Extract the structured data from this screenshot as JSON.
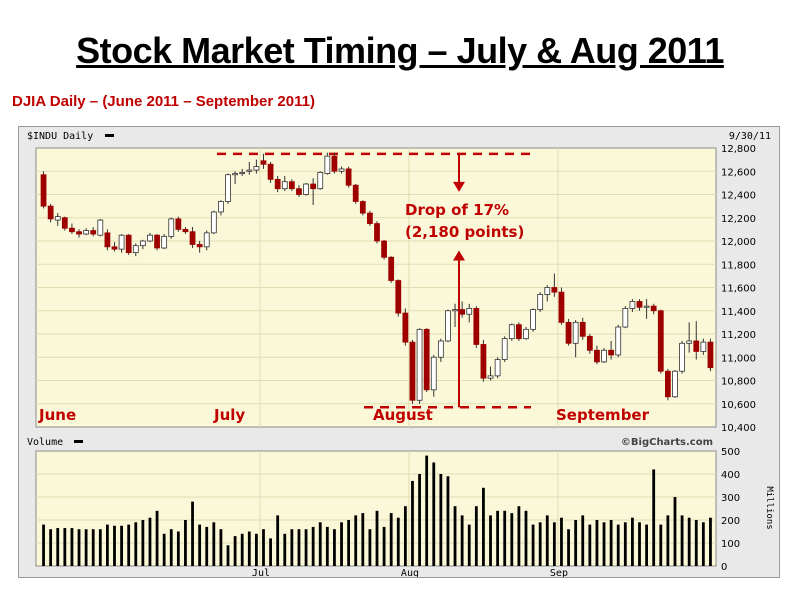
{
  "page": {
    "title": "Stock Market Timing – July & Aug 2011",
    "subtitle": "DJIA Daily – (June 2011 – September 2011)"
  },
  "colors": {
    "chart_bg": "#fbf8d9",
    "annotation_red": "#c00000",
    "down_candle": "#9e0000",
    "up_candle": "#ffffff",
    "volume_bar": "#000000"
  },
  "chart_data": [
    {
      "type": "candlestick",
      "header_left": "$INDU Daily",
      "header_right": "9/30/11",
      "ylim": [
        10400,
        12800
      ],
      "y_ticks": [
        12800,
        12600,
        12400,
        12200,
        12000,
        11800,
        11600,
        11400,
        11200,
        11000,
        10800,
        10600,
        10400
      ],
      "y_tick_labels": [
        "12,800",
        "12,600",
        "12,400",
        "12,200",
        "12,000",
        "11,800",
        "11,600",
        "11,400",
        "11,200",
        "11,000",
        "10,800",
        "10,600",
        "10,400"
      ],
      "month_labels": [
        "June",
        "July",
        "August",
        "September"
      ],
      "annotation": [
        "Drop of 17%",
        "(2,180 points)"
      ],
      "reference_lines": [
        12750,
        10570
      ],
      "candles": [
        [
          12570,
          12600,
          12280,
          12300
        ],
        [
          12300,
          12320,
          12160,
          12190
        ],
        [
          12180,
          12240,
          12130,
          12210
        ],
        [
          12200,
          12210,
          12090,
          12110
        ],
        [
          12110,
          12150,
          12060,
          12080
        ],
        [
          12080,
          12100,
          12030,
          12060
        ],
        [
          12060,
          12110,
          12050,
          12090
        ],
        [
          12090,
          12120,
          12040,
          12060
        ],
        [
          12050,
          12190,
          12040,
          12180
        ],
        [
          12070,
          12100,
          11920,
          11950
        ],
        [
          11950,
          11990,
          11910,
          11930
        ],
        [
          11930,
          12060,
          11900,
          12050
        ],
        [
          12050,
          12060,
          11880,
          11900
        ],
        [
          11900,
          11980,
          11870,
          11960
        ],
        [
          11960,
          12010,
          11930,
          12000
        ],
        [
          12000,
          12070,
          11990,
          12050
        ],
        [
          12050,
          12060,
          11920,
          11940
        ],
        [
          11940,
          12060,
          11930,
          12040
        ],
        [
          12040,
          12200,
          12020,
          12190
        ],
        [
          12190,
          12210,
          12080,
          12100
        ],
        [
          12100,
          12120,
          12060,
          12080
        ],
        [
          12080,
          12120,
          11940,
          11970
        ],
        [
          11970,
          12000,
          11900,
          11950
        ],
        [
          11950,
          12090,
          11920,
          12070
        ],
        [
          12070,
          12260,
          12060,
          12250
        ],
        [
          12250,
          12350,
          12220,
          12340
        ],
        [
          12340,
          12580,
          12320,
          12570
        ],
        [
          12570,
          12600,
          12490,
          12580
        ],
        [
          12580,
          12620,
          12560,
          12590
        ],
        [
          12600,
          12680,
          12570,
          12610
        ],
        [
          12610,
          12700,
          12580,
          12640
        ],
        [
          12690,
          12750,
          12620,
          12660
        ],
        [
          12660,
          12680,
          12500,
          12530
        ],
        [
          12530,
          12560,
          12420,
          12450
        ],
        [
          12450,
          12560,
          12430,
          12510
        ],
        [
          12510,
          12530,
          12430,
          12450
        ],
        [
          12450,
          12480,
          12380,
          12400
        ],
        [
          12400,
          12500,
          12390,
          12490
        ],
        [
          12490,
          12540,
          12310,
          12450
        ],
        [
          12450,
          12600,
          12440,
          12590
        ],
        [
          12580,
          12760,
          12570,
          12730
        ],
        [
          12730,
          12760,
          12580,
          12600
        ],
        [
          12600,
          12640,
          12580,
          12620
        ],
        [
          12620,
          12640,
          12460,
          12480
        ],
        [
          12480,
          12490,
          12320,
          12340
        ],
        [
          12340,
          12350,
          12220,
          12240
        ],
        [
          12240,
          12260,
          12130,
          12150
        ],
        [
          12150,
          12170,
          11980,
          12000
        ],
        [
          12000,
          12010,
          11840,
          11860
        ],
        [
          11860,
          11870,
          11640,
          11660
        ],
        [
          11660,
          11670,
          11350,
          11380
        ],
        [
          11380,
          11420,
          11100,
          11130
        ],
        [
          11130,
          11150,
          10600,
          10630
        ],
        [
          10630,
          11250,
          10600,
          11240
        ],
        [
          11240,
          11250,
          10700,
          10720
        ],
        [
          10720,
          11020,
          10660,
          11000
        ],
        [
          11000,
          11160,
          10960,
          11140
        ],
        [
          11140,
          11410,
          11130,
          11400
        ],
        [
          11400,
          11460,
          11260,
          11410
        ],
        [
          11410,
          11480,
          11340,
          11370
        ],
        [
          11370,
          11460,
          11300,
          11420
        ],
        [
          11420,
          11440,
          11080,
          11110
        ],
        [
          11110,
          11150,
          10790,
          10820
        ],
        [
          10820,
          10920,
          10800,
          10840
        ],
        [
          10840,
          11000,
          10820,
          10980
        ],
        [
          10980,
          11180,
          10960,
          11160
        ],
        [
          11160,
          11290,
          11140,
          11280
        ],
        [
          11280,
          11300,
          11140,
          11160
        ],
        [
          11160,
          11260,
          11150,
          11240
        ],
        [
          11240,
          11420,
          11220,
          11410
        ],
        [
          11410,
          11560,
          11390,
          11540
        ],
        [
          11540,
          11620,
          11480,
          11600
        ],
        [
          11600,
          11720,
          11520,
          11560
        ],
        [
          11560,
          11600,
          11280,
          11300
        ],
        [
          11300,
          11330,
          11100,
          11120
        ],
        [
          11120,
          11320,
          11000,
          11300
        ],
        [
          11300,
          11340,
          11150,
          11180
        ],
        [
          11180,
          11200,
          11030,
          11060
        ],
        [
          11060,
          11100,
          10940,
          10960
        ],
        [
          10960,
          11080,
          10950,
          11060
        ],
        [
          11060,
          11140,
          10980,
          11020
        ],
        [
          11020,
          11280,
          11000,
          11260
        ],
        [
          11260,
          11440,
          11250,
          11420
        ],
        [
          11420,
          11500,
          11390,
          11480
        ],
        [
          11480,
          11500,
          11400,
          11430
        ],
        [
          11430,
          11500,
          11330,
          11440
        ],
        [
          11440,
          11460,
          11370,
          11400
        ],
        [
          11400,
          11410,
          10860,
          10880
        ],
        [
          10880,
          10900,
          10630,
          10660
        ],
        [
          10660,
          10890,
          10650,
          10880
        ],
        [
          10880,
          11140,
          10860,
          11120
        ],
        [
          11120,
          11300,
          11040,
          11140
        ],
        [
          11140,
          11310,
          10980,
          11050
        ],
        [
          11050,
          11160,
          11020,
          11130
        ],
        [
          11130,
          11160,
          10880,
          10910
        ]
      ]
    },
    {
      "type": "bar",
      "header_left": "Volume",
      "watermark": "©BigCharts.com",
      "ylabel": "Millions",
      "ylim": [
        0,
        500
      ],
      "y_ticks": [
        0,
        100,
        200,
        300,
        400,
        500
      ],
      "x_labels": [
        "Jul",
        "Aug",
        "Sep"
      ],
      "values": [
        180,
        160,
        165,
        165,
        165,
        160,
        160,
        160,
        160,
        180,
        175,
        175,
        180,
        190,
        200,
        210,
        240,
        140,
        160,
        150,
        200,
        280,
        180,
        170,
        190,
        160,
        90,
        130,
        140,
        150,
        140,
        160,
        120,
        220,
        140,
        160,
        160,
        160,
        170,
        190,
        170,
        160,
        190,
        200,
        220,
        230,
        160,
        240,
        170,
        230,
        210,
        260,
        370,
        400,
        480,
        450,
        400,
        390,
        260,
        220,
        180,
        260,
        340,
        220,
        240,
        240,
        230,
        260,
        240,
        180,
        190,
        220,
        190,
        210,
        160,
        200,
        220,
        180,
        200,
        190,
        200,
        180,
        190,
        210,
        190,
        180,
        420,
        180,
        220,
        300,
        220,
        210,
        200,
        190,
        210
      ]
    }
  ]
}
